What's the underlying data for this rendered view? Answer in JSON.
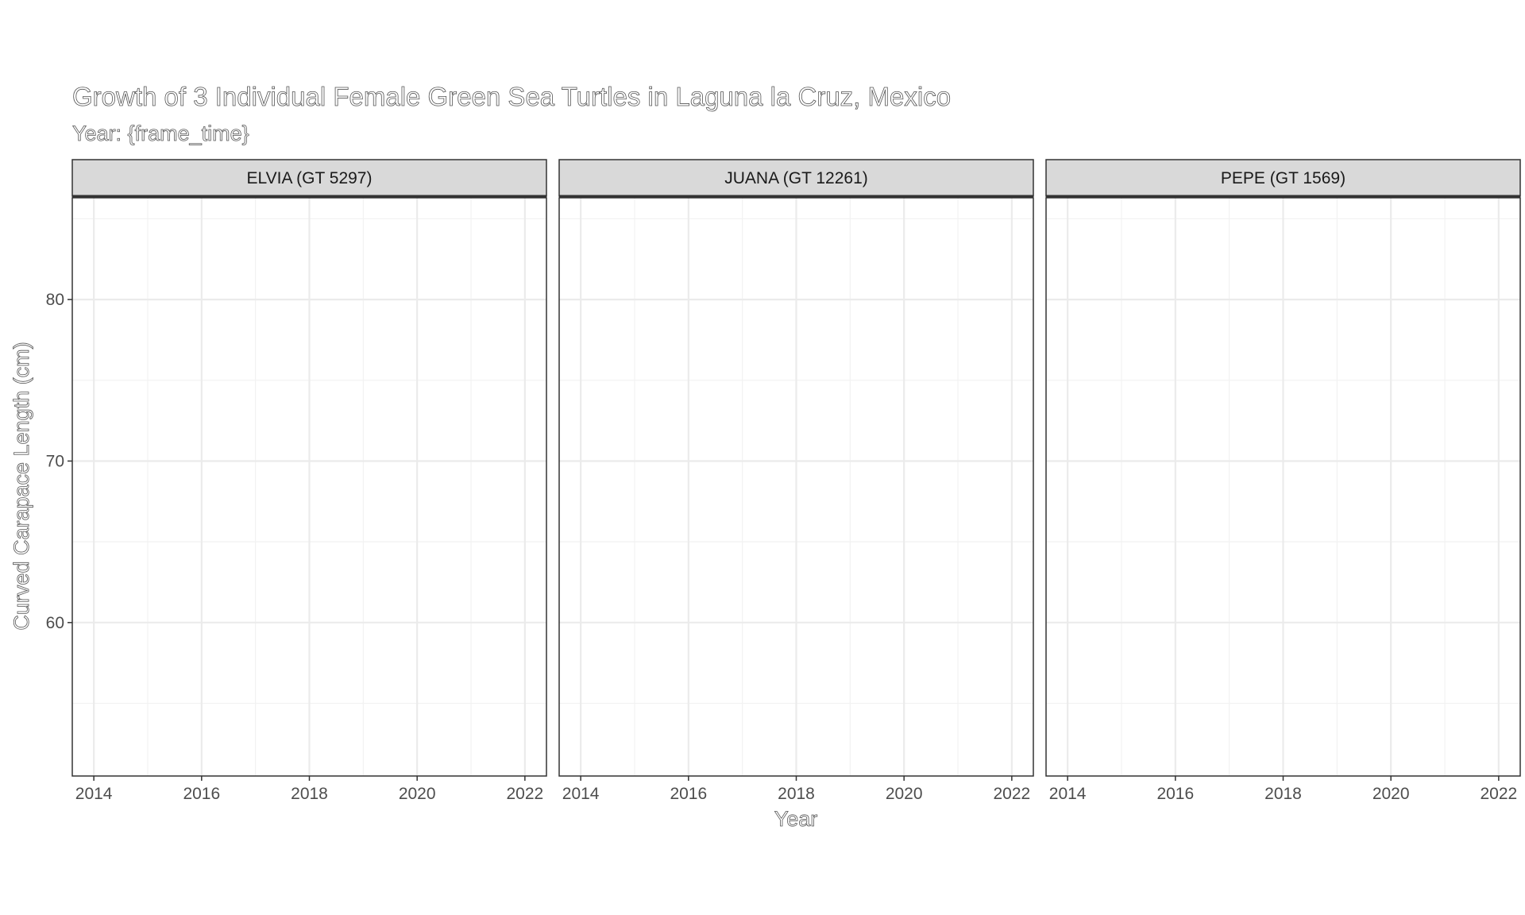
{
  "chart_data": {
    "type": "line",
    "title": "Growth of 3 Individual Female Green Sea Turtles in Laguna la Cruz, Mexico",
    "subtitle": "Year: {frame_time}",
    "xlabel": "Year",
    "ylabel": "Curved Carapace Length (cm)",
    "xlim": [
      2013.6,
      2022.4
    ],
    "ylim": [
      50.5,
      86.3
    ],
    "x_ticks": [
      2014,
      2016,
      2018,
      2020,
      2022
    ],
    "y_ticks": [
      60,
      70,
      80
    ],
    "grid": true,
    "facets": [
      {
        "label": "ELVIA (GT 5297)",
        "values": []
      },
      {
        "label": "JUANA (GT 12261)",
        "values": []
      },
      {
        "label": "PEPE (GT 1569)",
        "values": []
      }
    ]
  },
  "colors": {
    "panel_border": "#333333",
    "strip_fill": "#d9d9d9",
    "major_grid": "#ebebeb",
    "minor_grid": "#f2f2f2"
  }
}
